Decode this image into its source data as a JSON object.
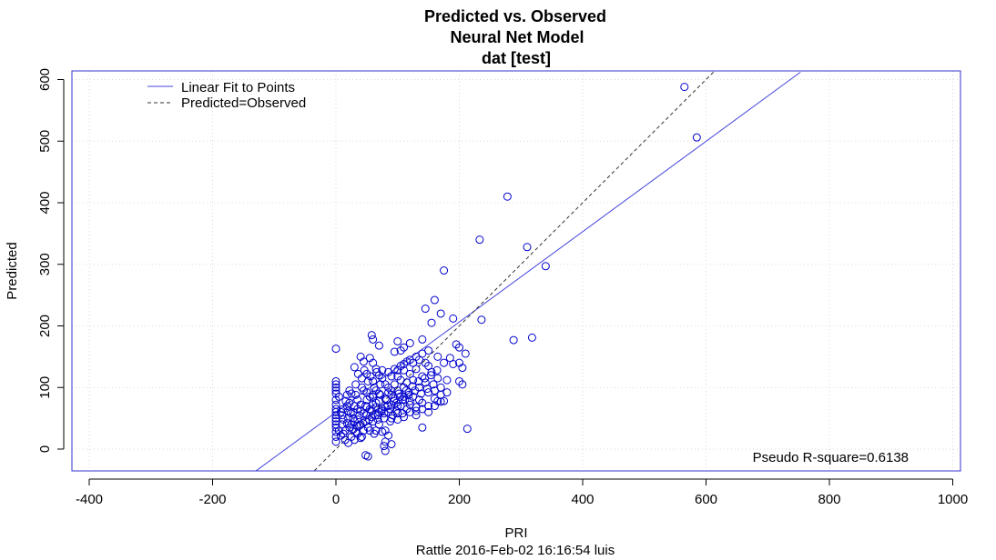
{
  "chart_data": {
    "type": "scatter",
    "title": [
      "Predicted vs. Observed",
      "Neural Net Model",
      "dat [test]"
    ],
    "xlabel": "PRI",
    "ylabel": "Predicted",
    "footer": "Rattle 2016-Feb-02 16:16:54 luis",
    "annotation": "Pseudo R-square=0.6138",
    "xlim": [
      -425,
      1010
    ],
    "ylim": [
      -35,
      612
    ],
    "x_ticks": [
      -400,
      -200,
      0,
      200,
      400,
      600,
      800,
      1000
    ],
    "y_ticks": [
      0,
      100,
      200,
      300,
      400,
      500,
      600
    ],
    "x_tick_labels": [
      "-400",
      "-200",
      "0",
      "200",
      "400",
      "600",
      "800",
      "1000"
    ],
    "y_tick_labels": [
      "0",
      "100",
      "200",
      "300",
      "400",
      "500",
      "600"
    ],
    "grid": true,
    "legend_position": "top-left",
    "legend": [
      "Linear Fit to Points",
      "Predicted=Observed"
    ],
    "colors": {
      "points": "#0000cc",
      "fit_line": "#4444dd",
      "reference_line": "#333333",
      "frame": "#3333cc",
      "grid": "#d8d8d8"
    },
    "fit_line": {
      "slope": 0.7334,
      "intercept": 59.7
    },
    "reference_line": {
      "slope": 1,
      "intercept": 0
    },
    "points": [
      [
        565,
        588
      ],
      [
        585,
        506
      ],
      [
        278,
        410
      ],
      [
        233,
        340
      ],
      [
        310,
        328
      ],
      [
        340,
        297
      ],
      [
        175,
        290
      ],
      [
        318,
        181
      ],
      [
        288,
        177
      ],
      [
        236,
        210
      ],
      [
        213,
        33
      ],
      [
        0,
        163
      ],
      [
        160,
        242
      ],
      [
        145,
        228
      ],
      [
        170,
        220
      ],
      [
        190,
        212
      ],
      [
        155,
        205
      ],
      [
        58,
        185
      ],
      [
        60,
        178
      ],
      [
        70,
        168
      ],
      [
        100,
        175
      ],
      [
        120,
        172
      ],
      [
        140,
        178
      ],
      [
        110,
        165
      ],
      [
        95,
        158
      ],
      [
        105,
        160
      ],
      [
        200,
        165
      ],
      [
        195,
        170
      ],
      [
        210,
        155
      ],
      [
        185,
        148
      ],
      [
        175,
        140
      ],
      [
        165,
        150
      ],
      [
        190,
        138
      ],
      [
        205,
        132
      ],
      [
        200,
        140
      ],
      [
        145,
        140
      ],
      [
        130,
        130
      ],
      [
        120,
        122
      ],
      [
        110,
        128
      ],
      [
        100,
        118
      ],
      [
        140,
        118
      ],
      [
        155,
        125
      ],
      [
        165,
        115
      ],
      [
        180,
        112
      ],
      [
        170,
        100
      ],
      [
        160,
        95
      ],
      [
        150,
        92
      ],
      [
        135,
        100
      ],
      [
        145,
        108
      ],
      [
        200,
        110
      ],
      [
        205,
        105
      ],
      [
        165,
        78
      ],
      [
        170,
        77
      ],
      [
        175,
        78
      ],
      [
        160,
        70
      ],
      [
        150,
        60
      ],
      [
        130,
        55
      ],
      [
        140,
        35
      ],
      [
        110,
        85
      ],
      [
        120,
        78
      ],
      [
        100,
        70
      ],
      [
        90,
        95
      ],
      [
        85,
        100
      ],
      [
        80,
        105
      ],
      [
        75,
        115
      ],
      [
        70,
        120
      ],
      [
        40,
        150
      ],
      [
        45,
        142
      ],
      [
        55,
        148
      ],
      [
        30,
        133
      ],
      [
        50,
        122
      ],
      [
        60,
        110
      ],
      [
        65,
        95
      ],
      [
        0,
        110
      ],
      [
        0,
        105
      ],
      [
        0,
        100
      ],
      [
        0,
        95
      ],
      [
        0,
        90
      ],
      [
        0,
        80
      ],
      [
        0,
        72
      ],
      [
        0,
        65
      ],
      [
        0,
        60
      ],
      [
        0,
        55
      ],
      [
        0,
        50
      ],
      [
        0,
        45
      ],
      [
        0,
        40
      ],
      [
        0,
        35
      ],
      [
        0,
        28
      ],
      [
        0,
        20
      ],
      [
        0,
        12
      ],
      [
        5,
        85
      ],
      [
        8,
        60
      ],
      [
        10,
        40
      ],
      [
        12,
        25
      ],
      [
        15,
        15
      ],
      [
        18,
        70
      ],
      [
        20,
        50
      ],
      [
        22,
        35
      ],
      [
        25,
        90
      ],
      [
        28,
        60
      ],
      [
        30,
        45
      ],
      [
        32,
        28
      ],
      [
        35,
        80
      ],
      [
        38,
        55
      ],
      [
        40,
        40
      ],
      [
        42,
        20
      ],
      [
        45,
        95
      ],
      [
        48,
        70
      ],
      [
        50,
        55
      ],
      [
        52,
        35
      ],
      [
        55,
        85
      ],
      [
        58,
        62
      ],
      [
        60,
        45
      ],
      [
        62,
        25
      ],
      [
        65,
        75
      ],
      [
        68,
        55
      ],
      [
        70,
        40
      ],
      [
        72,
        88
      ],
      [
        75,
        65
      ],
      [
        78,
        50
      ],
      [
        80,
        30
      ],
      [
        82,
        80
      ],
      [
        85,
        60
      ],
      [
        88,
        45
      ],
      [
        90,
        72
      ],
      [
        92,
        55
      ],
      [
        95,
        82
      ],
      [
        98,
        62
      ],
      [
        100,
        48
      ],
      [
        102,
        90
      ],
      [
        105,
        70
      ],
      [
        108,
        58
      ],
      [
        110,
        100
      ],
      [
        112,
        80
      ],
      [
        115,
        65
      ],
      [
        118,
        92
      ],
      [
        120,
        72
      ],
      [
        125,
        85
      ],
      [
        130,
        68
      ],
      [
        135,
        80
      ],
      [
        140,
        75
      ],
      [
        25,
        20
      ],
      [
        35,
        25
      ],
      [
        45,
        30
      ],
      [
        55,
        30
      ],
      [
        65,
        30
      ],
      [
        75,
        28
      ],
      [
        85,
        22
      ],
      [
        80,
        12
      ],
      [
        78,
        5
      ],
      [
        90,
        8
      ],
      [
        48,
        -10
      ],
      [
        52,
        -12
      ],
      [
        80,
        -3
      ],
      [
        20,
        10
      ],
      [
        30,
        15
      ],
      [
        40,
        18
      ],
      [
        15,
        30
      ],
      [
        25,
        40
      ],
      [
        35,
        48
      ],
      [
        45,
        58
      ],
      [
        55,
        65
      ],
      [
        65,
        68
      ],
      [
        22,
        75
      ],
      [
        32,
        88
      ],
      [
        42,
        100
      ],
      [
        52,
        110
      ],
      [
        62,
        100
      ],
      [
        72,
        105
      ],
      [
        35,
        65
      ],
      [
        40,
        72
      ],
      [
        50,
        80
      ],
      [
        60,
        85
      ],
      [
        70,
        90
      ],
      [
        85,
        92
      ],
      [
        95,
        105
      ],
      [
        105,
        112
      ],
      [
        115,
        108
      ],
      [
        125,
        112
      ],
      [
        10,
        55
      ],
      [
        12,
        48
      ],
      [
        18,
        42
      ],
      [
        28,
        50
      ],
      [
        38,
        38
      ],
      [
        48,
        45
      ],
      [
        58,
        52
      ],
      [
        68,
        48
      ],
      [
        78,
        58
      ],
      [
        88,
        65
      ],
      [
        98,
        75
      ],
      [
        108,
        80
      ],
      [
        118,
        88
      ],
      [
        128,
        95
      ],
      [
        138,
        90
      ],
      [
        148,
        98
      ],
      [
        158,
        105
      ],
      [
        20,
        62
      ],
      [
        30,
        70
      ],
      [
        40,
        62
      ],
      [
        50,
        68
      ],
      [
        60,
        72
      ],
      [
        70,
        78
      ],
      [
        80,
        82
      ],
      [
        90,
        88
      ],
      [
        100,
        95
      ],
      [
        50,
        92
      ],
      [
        60,
        88
      ],
      [
        70,
        60
      ],
      [
        80,
        68
      ],
      [
        90,
        50
      ],
      [
        100,
        58
      ],
      [
        110,
        52
      ],
      [
        120,
        60
      ],
      [
        130,
        62
      ],
      [
        140,
        65
      ],
      [
        150,
        70
      ],
      [
        160,
        82
      ],
      [
        170,
        88
      ],
      [
        180,
        92
      ],
      [
        5,
        30
      ],
      [
        8,
        22
      ],
      [
        12,
        65
      ],
      [
        16,
        78
      ],
      [
        24,
        58
      ],
      [
        28,
        32
      ],
      [
        34,
        38
      ],
      [
        44,
        42
      ],
      [
        54,
        48
      ],
      [
        64,
        55
      ],
      [
        74,
        62
      ],
      [
        84,
        70
      ],
      [
        94,
        78
      ],
      [
        104,
        85
      ],
      [
        114,
        95
      ],
      [
        124,
        102
      ],
      [
        134,
        110
      ],
      [
        144,
        115
      ],
      [
        154,
        120
      ],
      [
        164,
        128
      ],
      [
        60,
        140
      ],
      [
        65,
        130
      ],
      [
        75,
        128
      ],
      [
        85,
        125
      ],
      [
        95,
        130
      ],
      [
        105,
        135
      ],
      [
        115,
        142
      ],
      [
        125,
        140
      ],
      [
        135,
        145
      ],
      [
        150,
        135
      ],
      [
        42,
        115
      ],
      [
        32,
        105
      ],
      [
        22,
        95
      ],
      [
        18,
        88
      ],
      [
        36,
        122
      ],
      [
        46,
        128
      ],
      [
        56,
        118
      ],
      [
        66,
        125
      ],
      [
        90,
        118
      ],
      [
        100,
        128
      ],
      [
        110,
        138
      ],
      [
        120,
        145
      ],
      [
        130,
        150
      ],
      [
        140,
        155
      ],
      [
        150,
        160
      ]
    ]
  }
}
